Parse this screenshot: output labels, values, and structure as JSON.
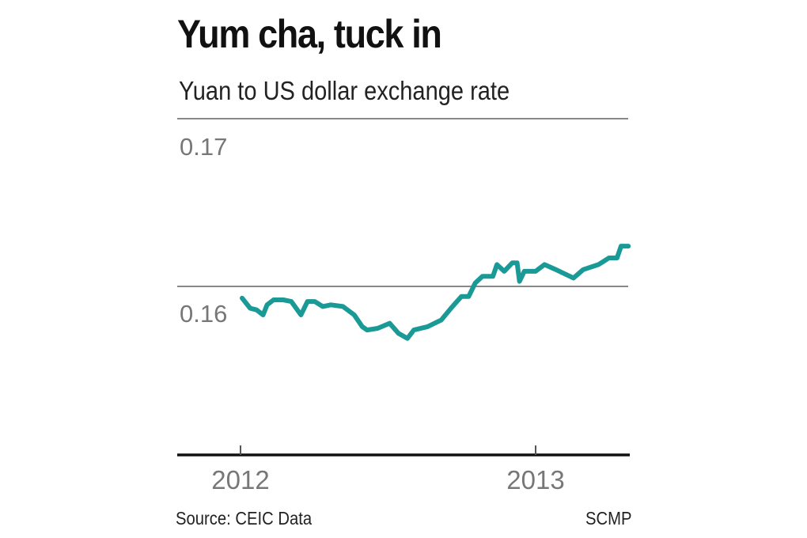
{
  "chart_data": {
    "type": "line",
    "title": "Yum cha, tuck in",
    "subtitle": "Yuan to US dollar exchange rate",
    "xlabel": "",
    "ylabel": "",
    "ylim": [
      0.15,
      0.17
    ],
    "y_ticks": [
      "0.17",
      "0.16"
    ],
    "x_ticks": [
      "2012",
      "2013"
    ],
    "grid": true,
    "line_color": "#1a9a96",
    "series": [
      {
        "x": [
          "2012-01-03",
          "2012-01-13",
          "2012-01-21",
          "2012-01-29",
          "2012-02-03",
          "2012-02-11",
          "2012-02-23",
          "2012-03-04",
          "2012-03-16",
          "2012-03-24",
          "2012-04-02",
          "2012-04-12",
          "2012-04-22",
          "2012-05-07",
          "2012-05-21",
          "2012-05-31",
          "2012-06-06",
          "2012-06-19",
          "2012-07-04",
          "2012-07-15",
          "2012-07-26",
          "2012-08-03",
          "2012-08-20",
          "2012-09-06",
          "2012-09-18",
          "2012-10-01",
          "2012-10-10",
          "2012-10-18",
          "2012-10-27",
          "2012-11-09",
          "2012-11-14",
          "2012-11-23",
          "2012-12-03",
          "2012-12-09",
          "2012-12-12",
          "2012-12-18",
          "2013-01-01",
          "2013-01-12",
          "2013-01-26",
          "2013-02-17",
          "2013-03-01",
          "2013-03-20",
          "2013-04-02",
          "2013-04-12",
          "2013-04-17",
          "2013-04-26"
        ],
        "values": [
          0.1593,
          0.1587,
          0.1586,
          0.1583,
          0.1589,
          0.1592,
          0.1592,
          0.1591,
          0.1583,
          0.1591,
          0.1591,
          0.1588,
          0.1589,
          0.1588,
          0.1583,
          0.1576,
          0.1574,
          0.1575,
          0.1578,
          0.1572,
          0.1569,
          0.1574,
          0.1576,
          0.158,
          0.1587,
          0.1594,
          0.1594,
          0.1602,
          0.1606,
          0.1606,
          0.1613,
          0.1609,
          0.1614,
          0.1614,
          0.1603,
          0.1609,
          0.1609,
          0.1613,
          0.161,
          0.1605,
          0.161,
          0.1613,
          0.1617,
          0.1617,
          0.1624,
          0.1624
        ]
      }
    ],
    "source": "Source: CEIC Data",
    "credit": "SCMP"
  }
}
